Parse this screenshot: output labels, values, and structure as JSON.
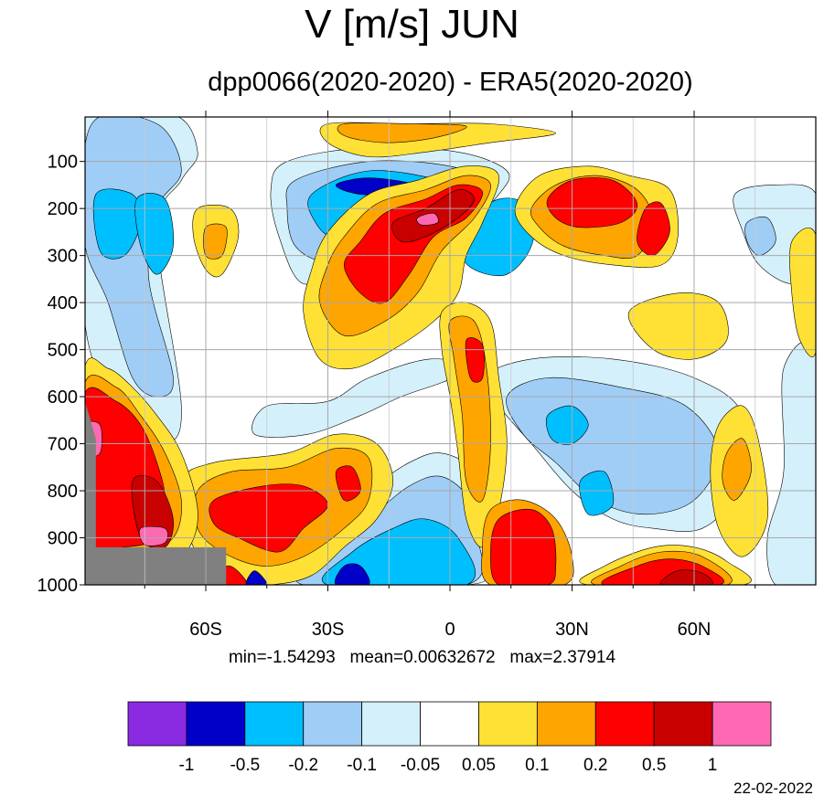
{
  "header": {
    "title": "V [m/s] JUN",
    "subtitle": "dpp0066(2020-2020) - ERA5(2020-2020)"
  },
  "stats": {
    "min_label": "min=-1.54293",
    "mean_label": "mean=0.00632672",
    "max_label": "max=2.37914"
  },
  "footer": {
    "date": "22-02-2022"
  },
  "colors": {
    "purple": "#8a2be2",
    "dark_blue": "#0000c8",
    "blue": "#00bfff",
    "light_blue": "#a0cdf5",
    "pale_blue": "#d4f0fb",
    "white": "#ffffff",
    "yellow": "#ffe135",
    "orange": "#ffa500",
    "red": "#ff0000",
    "dark_red": "#c80000",
    "pink": "#ff69b4",
    "missing": "#808080"
  },
  "chart_data": {
    "type": "heatmap",
    "title": "V [m/s] JUN",
    "subtitle": "dpp0066(2020-2020) - ERA5(2020-2020)",
    "xlabel": "",
    "ylabel": "",
    "x_axis": {
      "kind": "latitude",
      "range": [
        -90,
        90
      ],
      "ticks": [
        -60,
        -30,
        0,
        30,
        60
      ],
      "tick_labels": [
        "60S",
        "30S",
        "0",
        "30N",
        "60N"
      ]
    },
    "y_axis": {
      "kind": "pressure_hPa",
      "range": [
        0,
        1000
      ],
      "reversed": true,
      "ticks": [
        100,
        200,
        300,
        400,
        500,
        600,
        700,
        800,
        900,
        1000
      ],
      "tick_labels": [
        "100",
        "200",
        "300",
        "400",
        "500",
        "600",
        "700",
        "800",
        "900",
        "1000"
      ]
    },
    "grid": true,
    "colorbar": {
      "levels": [
        "-1",
        "-0.5",
        "-0.2",
        "-0.1",
        "-0.05",
        "0.05",
        "0.1",
        "0.2",
        "0.5",
        "1"
      ],
      "colors": [
        "#8a2be2",
        "#0000c8",
        "#00bfff",
        "#a0cdf5",
        "#d4f0fb",
        "#ffffff",
        "#ffe135",
        "#ffa500",
        "#ff0000",
        "#c80000",
        "#ff69b4"
      ]
    },
    "features": [
      {
        "name": "upper tropical southward-shifted positive core",
        "lat": [
          -25,
          5
        ],
        "p": [
          150,
          500
        ],
        "value": 0.5,
        "color": "red"
      },
      {
        "name": "upper tropical max core",
        "lat": [
          -10,
          5
        ],
        "p": [
          180,
          280
        ],
        "value": 1.0,
        "color": "dark_red"
      },
      {
        "name": "upper negative core",
        "lat": [
          -32,
          -10
        ],
        "p": [
          120,
          230
        ],
        "value": -0.5,
        "color": "dark_blue"
      },
      {
        "name": "NH subtropical upper positive",
        "lat": [
          22,
          42
        ],
        "p": [
          150,
          300
        ],
        "value": 0.3,
        "color": "red"
      },
      {
        "name": "southern high-lat low-level positive",
        "lat": [
          -87,
          -66
        ],
        "p": [
          600,
          920
        ],
        "value": 0.5,
        "color": "red"
      },
      {
        "name": "SH midlatitude low-level positive",
        "lat": [
          -60,
          -30
        ],
        "p": [
          750,
          920
        ],
        "value": 0.3,
        "color": "red"
      },
      {
        "name": "NH 50N low-level positive",
        "lat": [
          38,
          65
        ],
        "p": [
          920,
          1000
        ],
        "value": 0.5,
        "color": "red"
      },
      {
        "name": "low-level southward flow",
        "lat": [
          -35,
          5
        ],
        "p": [
          780,
          1000
        ],
        "value": -0.3,
        "color": "blue"
      }
    ],
    "stats": {
      "min": -1.54293,
      "mean": 0.00632672,
      "max": 2.37914
    }
  }
}
